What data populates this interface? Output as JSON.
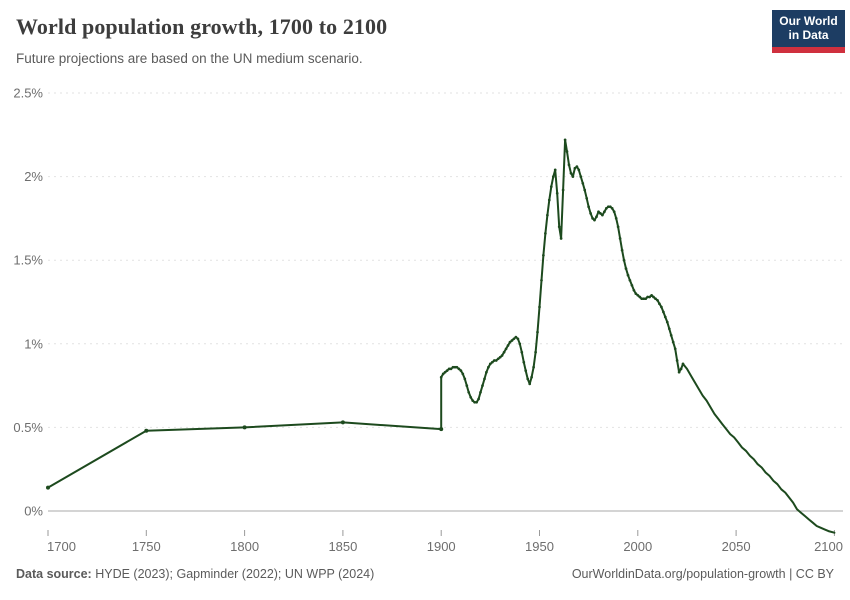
{
  "header": {
    "title": "World population growth, 1700 to 2100",
    "subtitle": "Future projections are based on the UN medium scenario.",
    "logo": {
      "line1": "Our World",
      "line2": "in Data",
      "bg_color": "#1d3d63",
      "accent_color": "#cf303e",
      "text_color": "#ffffff"
    }
  },
  "footer": {
    "source_label": "Data source:",
    "sources": " HYDE (2023); Gapminder (2022); UN WPP (2024)",
    "attribution": "OurWorldinData.org/population-growth | CC BY"
  },
  "chart_data": {
    "type": "line",
    "title": "World population growth, 1700 to 2100",
    "xlabel": "",
    "ylabel": "",
    "x_range": [
      1700,
      2100
    ],
    "y_range": [
      -0.15,
      2.5
    ],
    "x_ticks": [
      1700,
      1750,
      1800,
      1850,
      1900,
      1950,
      2000,
      2050,
      2100
    ],
    "y_ticks": [
      {
        "value": 0,
        "label": "0%"
      },
      {
        "value": 0.5,
        "label": "0.5%"
      },
      {
        "value": 1,
        "label": "1%"
      },
      {
        "value": 1.5,
        "label": "1.5%"
      },
      {
        "value": 2,
        "label": "2%"
      },
      {
        "value": 2.5,
        "label": "2.5%"
      }
    ],
    "grid": "horizontal-dashed",
    "legend": "none",
    "style": {
      "line_color": "#1d4a1e",
      "grid_color": "#e2e2e2",
      "zero_line_color": "#a8a8a8",
      "tick_color": "#9a9a9a",
      "label_color": "#6e6e6e"
    },
    "marker_last_year": 2023,
    "coarse_points_count": 5,
    "series": [
      {
        "name": "World",
        "points": [
          [
            1700,
            0.14
          ],
          [
            1750,
            0.48
          ],
          [
            1800,
            0.5
          ],
          [
            1850,
            0.53
          ],
          [
            1900,
            0.49
          ],
          [
            1900,
            0.8
          ],
          [
            1901,
            0.82
          ],
          [
            1902,
            0.83
          ],
          [
            1903,
            0.84
          ],
          [
            1904,
            0.85
          ],
          [
            1905,
            0.85
          ],
          [
            1906,
            0.86
          ],
          [
            1907,
            0.86
          ],
          [
            1908,
            0.86
          ],
          [
            1909,
            0.85
          ],
          [
            1910,
            0.84
          ],
          [
            1911,
            0.82
          ],
          [
            1912,
            0.79
          ],
          [
            1913,
            0.75
          ],
          [
            1914,
            0.71
          ],
          [
            1915,
            0.68
          ],
          [
            1916,
            0.66
          ],
          [
            1917,
            0.65
          ],
          [
            1918,
            0.65
          ],
          [
            1919,
            0.67
          ],
          [
            1920,
            0.71
          ],
          [
            1921,
            0.75
          ],
          [
            1922,
            0.79
          ],
          [
            1923,
            0.83
          ],
          [
            1924,
            0.86
          ],
          [
            1925,
            0.88
          ],
          [
            1926,
            0.89
          ],
          [
            1927,
            0.9
          ],
          [
            1928,
            0.9
          ],
          [
            1929,
            0.91
          ],
          [
            1930,
            0.92
          ],
          [
            1931,
            0.93
          ],
          [
            1932,
            0.95
          ],
          [
            1933,
            0.97
          ],
          [
            1934,
            0.99
          ],
          [
            1935,
            1.01
          ],
          [
            1936,
            1.02
          ],
          [
            1937,
            1.03
          ],
          [
            1938,
            1.04
          ],
          [
            1939,
            1.03
          ],
          [
            1940,
            1.0
          ],
          [
            1941,
            0.95
          ],
          [
            1942,
            0.89
          ],
          [
            1943,
            0.84
          ],
          [
            1944,
            0.79
          ],
          [
            1945,
            0.76
          ],
          [
            1946,
            0.8
          ],
          [
            1947,
            0.86
          ],
          [
            1948,
            0.95
          ],
          [
            1949,
            1.07
          ],
          [
            1950,
            1.22
          ],
          [
            1951,
            1.38
          ],
          [
            1952,
            1.53
          ],
          [
            1953,
            1.66
          ],
          [
            1954,
            1.77
          ],
          [
            1955,
            1.86
          ],
          [
            1956,
            1.94
          ],
          [
            1957,
            2.0
          ],
          [
            1958,
            2.04
          ],
          [
            1959,
            1.9
          ],
          [
            1960,
            1.7
          ],
          [
            1961,
            1.63
          ],
          [
            1962,
            1.92
          ],
          [
            1963,
            2.22
          ],
          [
            1964,
            2.15
          ],
          [
            1965,
            2.07
          ],
          [
            1966,
            2.02
          ],
          [
            1967,
            2.0
          ],
          [
            1968,
            2.05
          ],
          [
            1969,
            2.06
          ],
          [
            1970,
            2.04
          ],
          [
            1971,
            2.0
          ],
          [
            1972,
            1.96
          ],
          [
            1973,
            1.92
          ],
          [
            1974,
            1.87
          ],
          [
            1975,
            1.82
          ],
          [
            1976,
            1.78
          ],
          [
            1977,
            1.75
          ],
          [
            1978,
            1.74
          ],
          [
            1979,
            1.76
          ],
          [
            1980,
            1.79
          ],
          [
            1981,
            1.78
          ],
          [
            1982,
            1.77
          ],
          [
            1983,
            1.79
          ],
          [
            1984,
            1.81
          ],
          [
            1985,
            1.82
          ],
          [
            1986,
            1.82
          ],
          [
            1987,
            1.81
          ],
          [
            1988,
            1.79
          ],
          [
            1989,
            1.75
          ],
          [
            1990,
            1.7
          ],
          [
            1991,
            1.63
          ],
          [
            1992,
            1.56
          ],
          [
            1993,
            1.5
          ],
          [
            1994,
            1.45
          ],
          [
            1995,
            1.41
          ],
          [
            1996,
            1.38
          ],
          [
            1997,
            1.35
          ],
          [
            1998,
            1.32
          ],
          [
            1999,
            1.3
          ],
          [
            2000,
            1.29
          ],
          [
            2001,
            1.28
          ],
          [
            2002,
            1.27
          ],
          [
            2003,
            1.27
          ],
          [
            2004,
            1.27
          ],
          [
            2005,
            1.28
          ],
          [
            2006,
            1.28
          ],
          [
            2007,
            1.29
          ],
          [
            2008,
            1.28
          ],
          [
            2009,
            1.27
          ],
          [
            2010,
            1.26
          ],
          [
            2011,
            1.24
          ],
          [
            2012,
            1.22
          ],
          [
            2013,
            1.19
          ],
          [
            2014,
            1.16
          ],
          [
            2015,
            1.13
          ],
          [
            2016,
            1.09
          ],
          [
            2017,
            1.05
          ],
          [
            2018,
            1.01
          ],
          [
            2019,
            0.97
          ],
          [
            2020,
            0.9
          ],
          [
            2021,
            0.83
          ],
          [
            2022,
            0.85
          ],
          [
            2023,
            0.88
          ],
          [
            2025,
            0.85
          ],
          [
            2027,
            0.81
          ],
          [
            2029,
            0.77
          ],
          [
            2031,
            0.73
          ],
          [
            2033,
            0.69
          ],
          [
            2035,
            0.66
          ],
          [
            2037,
            0.62
          ],
          [
            2039,
            0.58
          ],
          [
            2041,
            0.55
          ],
          [
            2043,
            0.52
          ],
          [
            2045,
            0.49
          ],
          [
            2047,
            0.46
          ],
          [
            2049,
            0.44
          ],
          [
            2051,
            0.41
          ],
          [
            2053,
            0.38
          ],
          [
            2055,
            0.36
          ],
          [
            2057,
            0.33
          ],
          [
            2059,
            0.31
          ],
          [
            2061,
            0.28
          ],
          [
            2063,
            0.26
          ],
          [
            2065,
            0.23
          ],
          [
            2067,
            0.21
          ],
          [
            2069,
            0.18
          ],
          [
            2071,
            0.16
          ],
          [
            2073,
            0.13
          ],
          [
            2075,
            0.11
          ],
          [
            2077,
            0.08
          ],
          [
            2079,
            0.05
          ],
          [
            2081,
            0.01
          ],
          [
            2083,
            -0.01
          ],
          [
            2085,
            -0.03
          ],
          [
            2087,
            -0.05
          ],
          [
            2089,
            -0.07
          ],
          [
            2091,
            -0.09
          ],
          [
            2093,
            -0.1
          ],
          [
            2095,
            -0.11
          ],
          [
            2097,
            -0.12
          ],
          [
            2100,
            -0.13
          ]
        ]
      }
    ]
  }
}
